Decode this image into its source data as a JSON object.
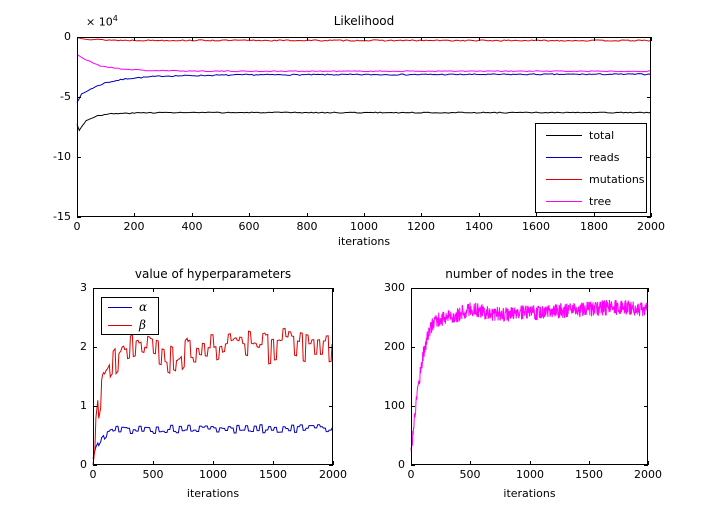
{
  "figure": {
    "background": "#ffffff",
    "axes_color": "#000000",
    "text_color": "#000000"
  },
  "chart_data": [
    {
      "type": "line",
      "title": "Likelihood",
      "xlabel": "iterations",
      "ylabel": "",
      "y_scale_label": {
        "base": "× 10",
        "exp": "4"
      },
      "xlim": [
        0,
        2000
      ],
      "ylim": [
        -15,
        0
      ],
      "xticks": [
        0,
        200,
        400,
        600,
        800,
        1000,
        1200,
        1400,
        1600,
        1800,
        2000
      ],
      "yticks": [
        0,
        -5,
        -10,
        -15
      ],
      "grid": false,
      "legend": {
        "position": "bottom-right",
        "entries": [
          "total",
          "reads",
          "mutations",
          "tree"
        ]
      },
      "series": [
        {
          "name": "total",
          "color": "#000000",
          "keypoints": [
            [
              0,
              -7.3
            ],
            [
              8,
              -7.75
            ],
            [
              30,
              -7.0
            ],
            [
              70,
              -6.55
            ],
            [
              120,
              -6.4
            ],
            [
              250,
              -6.3
            ],
            [
              2000,
              -6.3
            ]
          ],
          "noise": 0.04,
          "step": 8,
          "hold": 1,
          "seed": 3
        },
        {
          "name": "reads",
          "color": "#0000bb",
          "keypoints": [
            [
              0,
              -5.4
            ],
            [
              15,
              -4.8
            ],
            [
              50,
              -4.3
            ],
            [
              100,
              -3.8
            ],
            [
              180,
              -3.45
            ],
            [
              300,
              -3.25
            ],
            [
              600,
              -3.15
            ],
            [
              2000,
              -3.1
            ]
          ],
          "noise": 0.05,
          "step": 8,
          "hold": 1,
          "seed": 7
        },
        {
          "name": "mutations",
          "color": "#dd0000",
          "keypoints": [
            [
              0,
              -0.05
            ],
            [
              50,
              -0.2
            ],
            [
              150,
              -0.28
            ],
            [
              2000,
              -0.3
            ]
          ],
          "noise": 0.05,
          "step": 8,
          "hold": 1,
          "seed": 13
        },
        {
          "name": "tree",
          "color": "#ff00ff",
          "keypoints": [
            [
              0,
              -1.45
            ],
            [
              30,
              -1.9
            ],
            [
              80,
              -2.4
            ],
            [
              150,
              -2.65
            ],
            [
              250,
              -2.8
            ],
            [
              500,
              -2.85
            ],
            [
              2000,
              -2.85
            ]
          ],
          "noise": 0.04,
          "step": 8,
          "hold": 1,
          "seed": 21
        }
      ]
    },
    {
      "type": "line",
      "title": "value of hyperparameters",
      "xlabel": "iterations",
      "ylabel": "",
      "xlim": [
        0,
        2000
      ],
      "ylim": [
        0,
        3
      ],
      "xticks": [
        0,
        500,
        1000,
        1500,
        2000
      ],
      "yticks": [
        0,
        1,
        2,
        3
      ],
      "grid": false,
      "legend": {
        "position": "top-left",
        "entries": [
          "α",
          "β"
        ]
      },
      "series": [
        {
          "name": "alpha",
          "color": "#0000bb",
          "keypoints": [
            [
              0,
              0.08
            ],
            [
              20,
              0.25
            ],
            [
              60,
              0.42
            ],
            [
              120,
              0.55
            ],
            [
              200,
              0.6
            ],
            [
              2000,
              0.62
            ]
          ],
          "noise": 0.07,
          "step": 8,
          "hold": 3,
          "seed": 5
        },
        {
          "name": "beta",
          "color": "#dd0000",
          "keypoints": [
            [
              0,
              0.15
            ],
            [
              40,
              0.9
            ],
            [
              80,
              1.35
            ],
            [
              150,
              1.65
            ],
            [
              250,
              1.9
            ],
            [
              400,
              2.0
            ],
            [
              600,
              1.85
            ],
            [
              700,
              1.75
            ],
            [
              800,
              2.0
            ],
            [
              1000,
              1.95
            ],
            [
              1200,
              2.1
            ],
            [
              1400,
              1.95
            ],
            [
              1600,
              2.05
            ],
            [
              1800,
              1.95
            ],
            [
              2000,
              2.0
            ]
          ],
          "noise": 0.28,
          "step": 8,
          "hold": 3,
          "seed": 9
        }
      ]
    },
    {
      "type": "line",
      "title": "number of nodes in the tree",
      "xlabel": "iterations",
      "ylabel": "",
      "xlim": [
        0,
        2000
      ],
      "ylim": [
        0,
        300
      ],
      "xticks": [
        0,
        500,
        1000,
        1500,
        2000
      ],
      "yticks": [
        0,
        100,
        200,
        300
      ],
      "grid": false,
      "legend": null,
      "series": [
        {
          "name": "nodes",
          "color": "#ff00ff",
          "keypoints": [
            [
              0,
              25
            ],
            [
              20,
              60
            ],
            [
              50,
              120
            ],
            [
              100,
              185
            ],
            [
              150,
              225
            ],
            [
              200,
              245
            ],
            [
              300,
              250
            ],
            [
              400,
              255
            ],
            [
              500,
              265
            ],
            [
              650,
              258
            ],
            [
              800,
              255
            ],
            [
              1000,
              258
            ],
            [
              1200,
              260
            ],
            [
              1400,
              262
            ],
            [
              1600,
              266
            ],
            [
              1800,
              268
            ],
            [
              2000,
              262
            ]
          ],
          "noise": 13,
          "step": 3,
          "hold": 1,
          "seed": 17
        }
      ]
    }
  ]
}
